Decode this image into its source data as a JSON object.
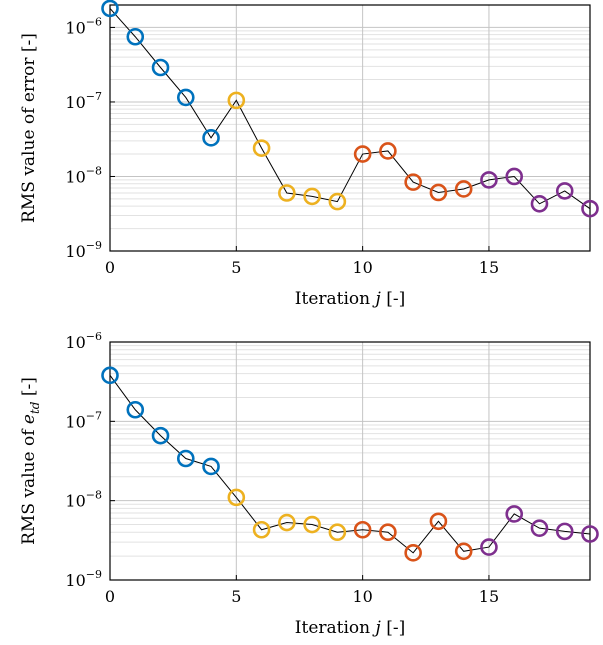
{
  "chart_data": [
    {
      "type": "scatter",
      "title": "",
      "xlabel": "Iteration j [-]",
      "ylabel": "RMS value of error [-]",
      "yscale": "log",
      "xlim": [
        0,
        19
      ],
      "ylim": [
        1e-09,
        2e-06
      ],
      "grid": true,
      "line_color": "#000000",
      "x_ticks": [
        {
          "value": 0,
          "label": "0"
        },
        {
          "value": 5,
          "label": "5"
        },
        {
          "value": 10,
          "label": "10"
        },
        {
          "value": 15,
          "label": "15"
        }
      ],
      "y_ticks": [
        {
          "value": 1e-09,
          "base": "10",
          "exp": "−9"
        },
        {
          "value": 1e-08,
          "base": "10",
          "exp": "−8"
        },
        {
          "value": 1e-07,
          "base": "10",
          "exp": "−7"
        },
        {
          "value": 1e-06,
          "base": "10",
          "exp": "−6"
        }
      ],
      "series": [
        {
          "color": "#0072BD",
          "x": [
            0,
            1,
            2,
            3,
            4
          ],
          "values": [
            1.8e-06,
            7.5e-07,
            2.9e-07,
            1.15e-07,
            3.3e-08
          ]
        },
        {
          "color": "#EDB120",
          "x": [
            5,
            6,
            7,
            8,
            9
          ],
          "values": [
            1.05e-07,
            2.4e-08,
            6e-09,
            5.4e-09,
            4.6e-09
          ]
        },
        {
          "color": "#D95319",
          "x": [
            10,
            11,
            12,
            13,
            14
          ],
          "values": [
            2e-08,
            2.2e-08,
            8.4e-09,
            6.1e-09,
            6.8e-09
          ]
        },
        {
          "color": "#7E2F8E",
          "x": [
            15,
            16,
            17,
            18,
            19
          ],
          "values": [
            9e-09,
            1e-08,
            4.3e-09,
            6.4e-09,
            3.7e-09
          ]
        }
      ]
    },
    {
      "type": "scatter",
      "title": "",
      "xlabel": "Iteration j [-]",
      "ylabel": "RMS value of e_td [-]",
      "yscale": "log",
      "xlim": [
        0,
        19
      ],
      "ylim": [
        1e-09,
        1e-06
      ],
      "grid": true,
      "line_color": "#000000",
      "x_ticks": [
        {
          "value": 0,
          "label": "0"
        },
        {
          "value": 5,
          "label": "5"
        },
        {
          "value": 10,
          "label": "10"
        },
        {
          "value": 15,
          "label": "15"
        }
      ],
      "y_ticks": [
        {
          "value": 1e-09,
          "base": "10",
          "exp": "−9"
        },
        {
          "value": 1e-08,
          "base": "10",
          "exp": "−8"
        },
        {
          "value": 1e-07,
          "base": "10",
          "exp": "−7"
        },
        {
          "value": 1e-06,
          "base": "10",
          "exp": "−6"
        }
      ],
      "series": [
        {
          "color": "#0072BD",
          "x": [
            0,
            1,
            2,
            3,
            4
          ],
          "values": [
            3.8e-07,
            1.4e-07,
            6.6e-08,
            3.4e-08,
            2.7e-08
          ]
        },
        {
          "color": "#EDB120",
          "x": [
            5,
            6,
            7,
            8,
            9
          ],
          "values": [
            1.1e-08,
            4.3e-09,
            5.3e-09,
            5e-09,
            4e-09
          ]
        },
        {
          "color": "#D95319",
          "x": [
            10,
            11,
            12,
            13,
            14
          ],
          "values": [
            4.3e-09,
            4e-09,
            2.2e-09,
            5.5e-09,
            2.3e-09
          ]
        },
        {
          "color": "#7E2F8E",
          "x": [
            15,
            16,
            17,
            18,
            19
          ],
          "values": [
            2.6e-09,
            6.8e-09,
            4.5e-09,
            4.1e-09,
            3.8e-09
          ]
        }
      ]
    }
  ]
}
